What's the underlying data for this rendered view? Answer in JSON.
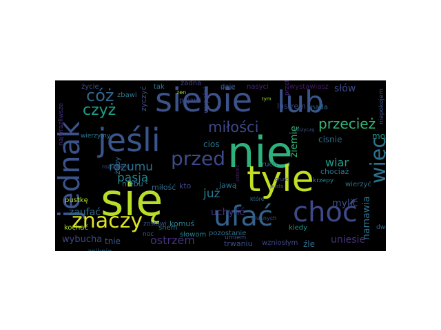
{
  "wordcloud": {
    "background": "#000000",
    "words": [
      {
        "text": "nie",
        "color": "#2db27d"
      },
      {
        "text": "się",
        "color": "#b8de29"
      },
      {
        "text": "siebie",
        "color": "#3b528b"
      },
      {
        "text": "lub",
        "color": "#39568c"
      },
      {
        "text": "tyle",
        "color": "#c2df23"
      },
      {
        "text": "choć",
        "color": "#3e4989"
      },
      {
        "text": "jeśli",
        "color": "#3a548c"
      },
      {
        "text": "jednak",
        "color": "#3b528b"
      },
      {
        "text": "ufać",
        "color": "#33638d"
      },
      {
        "text": "znaczy",
        "color": "#e0e524"
      },
      {
        "text": "przed",
        "color": "#3e4a89"
      },
      {
        "text": "więc",
        "color": "#2c728e"
      },
      {
        "text": "cóż",
        "color": "#31678e"
      },
      {
        "text": "czyż",
        "color": "#1fa088"
      },
      {
        "text": "miłości",
        "color": "#3f4889"
      },
      {
        "text": "przecież",
        "color": "#35b779"
      },
      {
        "text": "rozumu",
        "color": "#2c728e"
      },
      {
        "text": "pasją",
        "color": "#26828e"
      },
      {
        "text": "już",
        "color": "#2a788e"
      },
      {
        "text": "wiar",
        "color": "#1f9e89"
      },
      {
        "text": "słów",
        "color": "#3e4a89"
      },
      {
        "text": "namawia",
        "color": "#2c728e"
      },
      {
        "text": "zaufać",
        "color": "#2e6e8e"
      },
      {
        "text": "uchylić",
        "color": "#46337e"
      },
      {
        "text": "mylić",
        "color": "#3b528b"
      },
      {
        "text": "ostrzem",
        "color": "#46327e"
      },
      {
        "text": "wybucha",
        "color": "#3f4788"
      },
      {
        "text": "uniesie",
        "color": "#46307e"
      },
      {
        "text": "ziemię",
        "color": "#35b779"
      },
      {
        "text": "cios",
        "color": "#2a788e"
      },
      {
        "text": "życie",
        "color": "#3b528b"
      },
      {
        "text": "tak",
        "color": "#2a788e"
      },
      {
        "text": "żadna",
        "color": "#433e85"
      },
      {
        "text": "daje",
        "color": "#3b528b"
      },
      {
        "text": "nasyci",
        "color": "#482878"
      },
      {
        "text": "wystawiasz",
        "color": "#481a6c"
      },
      {
        "text": "nada",
        "color": "#31688e"
      },
      {
        "text": "lustrem",
        "color": "#3e4c8a"
      },
      {
        "text": "zbawi",
        "color": "#2a778e"
      },
      {
        "text": "zyczyć",
        "color": "#3b528b"
      },
      {
        "text": "pojawi",
        "color": "#3e4989"
      },
      {
        "text": "wypełni",
        "color": "#3e4a89"
      },
      {
        "text": "cisnie",
        "color": "#2e6e8e"
      },
      {
        "text": "może",
        "color": "#1f988b"
      },
      {
        "text": "niebu",
        "color": "#2a768e"
      },
      {
        "text": "miłość",
        "color": "#31688e"
      },
      {
        "text": "chociaż",
        "color": "#2c738e"
      },
      {
        "text": "kto",
        "color": "#3f4889"
      },
      {
        "text": "tnie",
        "color": "#39568c"
      },
      {
        "text": "komuś",
        "color": "#26828e"
      },
      {
        "text": "pustkę",
        "color": "#b5de2b"
      },
      {
        "text": "kochać",
        "color": "#a8db34"
      },
      {
        "text": "żeby",
        "color": "#2e6f8e"
      },
      {
        "text": "snem",
        "color": "#2b748e"
      },
      {
        "text": "słowom",
        "color": "#24878e"
      },
      {
        "text": "trwaniu",
        "color": "#3b518b"
      },
      {
        "text": "wzniosłym",
        "color": "#3f4889"
      },
      {
        "text": "źle",
        "color": "#2f6c8e"
      },
      {
        "text": "kiedy",
        "color": "#21918c"
      },
      {
        "text": "pozostanie",
        "color": "#2c718e"
      },
      {
        "text": "zniknie",
        "color": "#31678e"
      },
      {
        "text": "noc",
        "color": "#3b528b"
      },
      {
        "text": "mieć",
        "color": "#3f4889"
      },
      {
        "text": "własnych",
        "color": "#3b528b"
      },
      {
        "text": "które",
        "color": "#2f6c8e"
      },
      {
        "text": "jawą",
        "color": "#2a768e"
      },
      {
        "text": "ruch",
        "color": "#31688e"
      },
      {
        "text": "krzepy",
        "color": "#26828e"
      },
      {
        "text": "wierzyć",
        "color": "#2c718e"
      },
      {
        "text": "dwoje",
        "color": "#31688e"
      },
      {
        "text": "niepokojem",
        "color": "#3b528b"
      },
      {
        "text": "przebyć",
        "color": "#482677"
      },
      {
        "text": "rozumiem",
        "color": "#3e4c8a"
      },
      {
        "text": "zostawi",
        "color": "#3b528b"
      },
      {
        "text": "umiem",
        "color": "#3e4c8a"
      },
      {
        "text": "najwrazliwsze",
        "color": "#46307e"
      },
      {
        "text": "wierzymy",
        "color": "#2a778e"
      },
      {
        "text": "zen",
        "color": "#a8db34"
      },
      {
        "text": "tym",
        "color": "#a8db34"
      },
      {
        "text": "grunt",
        "color": "#3e4c8a"
      },
      {
        "text": "pusto",
        "color": "#3e4c8a"
      },
      {
        "text": "pożyczę",
        "color": "#3b528b"
      },
      {
        "text": "osłonić",
        "color": "#482475"
      }
    ]
  }
}
